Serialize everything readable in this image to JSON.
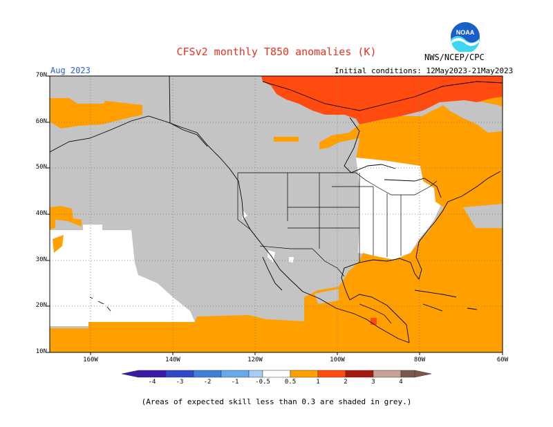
{
  "title": "CFSv2 monthly T850 anomalies (K)",
  "org": "NWS/NCEP/CPC",
  "logo_text": "NOAA",
  "month": "Aug 2023",
  "init_conditions": "Initial conditions: 12May2023-21May2023",
  "lat_labels": [
    "70N",
    "60N",
    "50N",
    "40N",
    "30N",
    "20N",
    "10N"
  ],
  "lon_labels": [
    "160W",
    "140W",
    "120W",
    "100W",
    "80W",
    "60W"
  ],
  "colorbar": {
    "labels": [
      "-4",
      "-3",
      "-2",
      "-1",
      "-0.5",
      "0.5",
      "1",
      "2",
      "3",
      "4"
    ],
    "colors": [
      "#3a1aa8",
      "#2f49c8",
      "#3f7fd9",
      "#67a9ec",
      "#a8cdf5",
      "#ffffff",
      "#ffa000",
      "#ff4a10",
      "#a31a10",
      "#c8a096",
      "#7d574b"
    ]
  },
  "colors": {
    "grey_low_skill": "#c4c4c4",
    "orange": "#ffa000",
    "red_orange": "#ff4a10",
    "red": "#e8321e"
  },
  "note": "(Areas of expected skill less than 0.3 are shaded in grey.)"
}
